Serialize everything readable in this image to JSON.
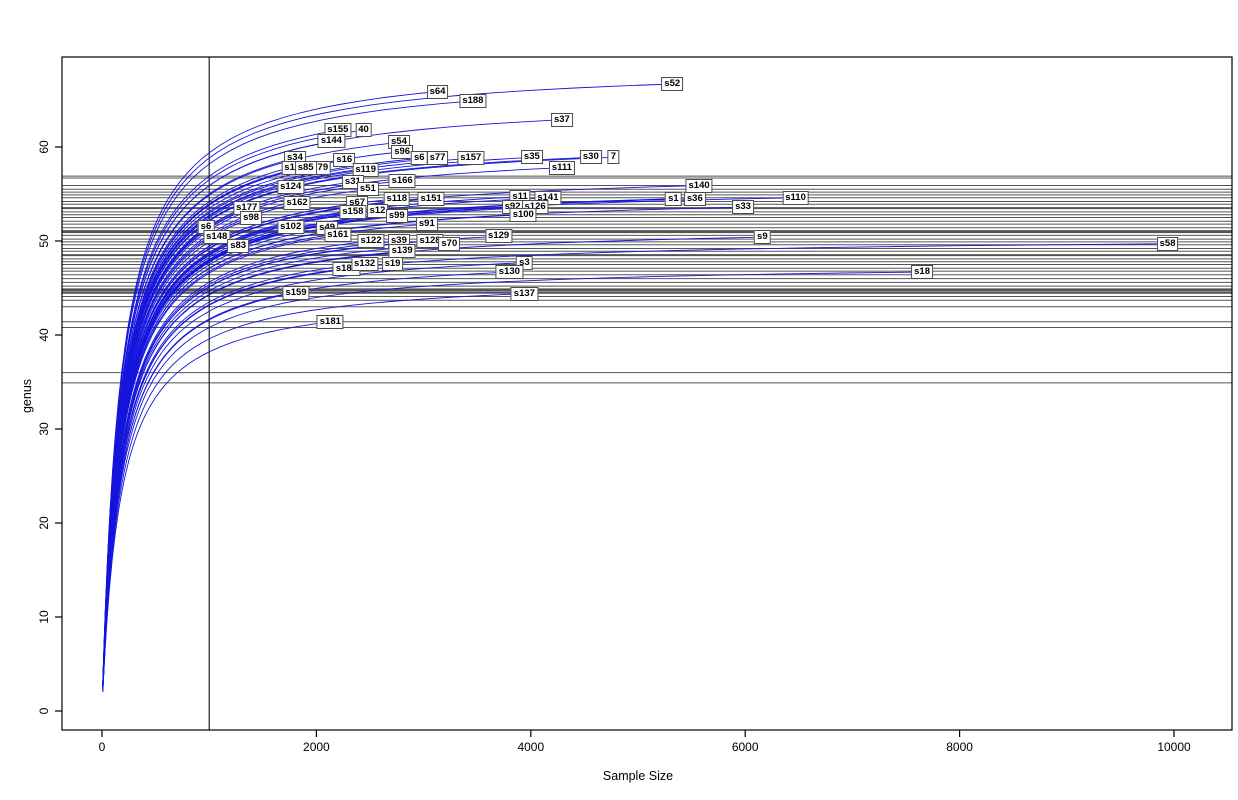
{
  "chart_data": {
    "type": "line",
    "title": "",
    "xlabel": "Sample Size",
    "ylabel": "genus",
    "xlim": [
      0,
      10300
    ],
    "ylim": [
      0,
      69
    ],
    "x_ticks": [
      0,
      2000,
      4000,
      6000,
      8000,
      10000
    ],
    "y_ticks": [
      0,
      10,
      20,
      30,
      40,
      50,
      60
    ],
    "legend": "none",
    "grid": "off",
    "curve_color": "#1515dd",
    "hline_color": "#555555",
    "box_color": "#000000",
    "vline_x": 1000,
    "hlines": [
      {
        "genus": 56.9,
        "weight": 1
      },
      {
        "genus": 56.7,
        "weight": 1
      },
      {
        "genus": 55.9,
        "weight": 1
      },
      {
        "genus": 55.5,
        "weight": 1
      },
      {
        "genus": 55.2,
        "weight": 1
      },
      {
        "genus": 54.9,
        "weight": 1
      },
      {
        "genus": 54.6,
        "weight": 1
      },
      {
        "genus": 54.2,
        "weight": 1
      },
      {
        "genus": 53.9,
        "weight": 1
      },
      {
        "genus": 53.5,
        "weight": 2
      },
      {
        "genus": 53.1,
        "weight": 1
      },
      {
        "genus": 52.8,
        "weight": 1
      },
      {
        "genus": 52.5,
        "weight": 1
      },
      {
        "genus": 52.1,
        "weight": 1
      },
      {
        "genus": 51.8,
        "weight": 1
      },
      {
        "genus": 51.4,
        "weight": 1
      },
      {
        "genus": 51.0,
        "weight": 3
      },
      {
        "genus": 50.6,
        "weight": 1
      },
      {
        "genus": 50.2,
        "weight": 1
      },
      {
        "genus": 49.9,
        "weight": 1
      },
      {
        "genus": 49.6,
        "weight": 1
      },
      {
        "genus": 49.2,
        "weight": 1
      },
      {
        "genus": 48.9,
        "weight": 1
      },
      {
        "genus": 48.5,
        "weight": 2
      },
      {
        "genus": 48.1,
        "weight": 1
      },
      {
        "genus": 47.8,
        "weight": 1
      },
      {
        "genus": 47.5,
        "weight": 1
      },
      {
        "genus": 47.1,
        "weight": 1
      },
      {
        "genus": 46.8,
        "weight": 1
      },
      {
        "genus": 46.4,
        "weight": 1
      },
      {
        "genus": 46.0,
        "weight": 1
      },
      {
        "genus": 45.6,
        "weight": 1
      },
      {
        "genus": 45.2,
        "weight": 1
      },
      {
        "genus": 44.8,
        "weight": 3
      },
      {
        "genus": 44.5,
        "weight": 2
      },
      {
        "genus": 44.1,
        "weight": 1
      },
      {
        "genus": 43.7,
        "weight": 1
      },
      {
        "genus": 43.0,
        "weight": 1
      },
      {
        "genus": 41.4,
        "weight": 1
      },
      {
        "genus": 40.8,
        "weight": 1
      },
      {
        "genus": 36.0,
        "weight": 1
      },
      {
        "genus": 34.9,
        "weight": 1
      }
    ],
    "series": [
      {
        "label": "s52",
        "end_x": 5320,
        "end_y": 66.7
      },
      {
        "label": "s64",
        "end_x": 3130,
        "end_y": 65.9
      },
      {
        "label": "s188",
        "end_x": 3460,
        "end_y": 64.9
      },
      {
        "label": "s37",
        "end_x": 4290,
        "end_y": 62.9
      },
      {
        "label": "40",
        "end_x": 2440,
        "end_y": 61.8,
        "partial": true
      },
      {
        "label": "s155",
        "end_x": 2200,
        "end_y": 61.8
      },
      {
        "label": "s144",
        "end_x": 2140,
        "end_y": 60.6
      },
      {
        "label": "s54",
        "end_x": 2770,
        "end_y": 60.5
      },
      {
        "label": "s96",
        "end_x": 2800,
        "end_y": 59.5
      },
      {
        "label": "s34",
        "end_x": 1800,
        "end_y": 58.8
      },
      {
        "label": "s16",
        "end_x": 2260,
        "end_y": 58.6
      },
      {
        "label": "s6",
        "end_x": 2960,
        "end_y": 58.8,
        "partial": true
      },
      {
        "label": "s77",
        "end_x": 3130,
        "end_y": 58.8
      },
      {
        "label": "s157",
        "end_x": 3440,
        "end_y": 58.8
      },
      {
        "label": "s1",
        "end_x": 1750,
        "end_y": 57.8,
        "partial": true
      },
      {
        "label": "79",
        "end_x": 2060,
        "end_y": 57.8,
        "partial": true
      },
      {
        "label": "s85",
        "end_x": 1900,
        "end_y": 57.8
      },
      {
        "label": "s119",
        "end_x": 2460,
        "end_y": 57.6
      },
      {
        "label": "s35",
        "end_x": 4010,
        "end_y": 58.9
      },
      {
        "label": "7",
        "end_x": 4770,
        "end_y": 58.9,
        "partial": true
      },
      {
        "label": "s30",
        "end_x": 4560,
        "end_y": 58.9
      },
      {
        "label": "s111",
        "end_x": 4290,
        "end_y": 57.8
      },
      {
        "label": "s31",
        "end_x": 2340,
        "end_y": 56.3
      },
      {
        "label": "s166",
        "end_x": 2800,
        "end_y": 56.4
      },
      {
        "label": "s124",
        "end_x": 1760,
        "end_y": 55.7
      },
      {
        "label": "s51",
        "end_x": 2480,
        "end_y": 55.5
      },
      {
        "label": "s140",
        "end_x": 5570,
        "end_y": 55.9
      },
      {
        "label": "s162",
        "end_x": 1820,
        "end_y": 54.0
      },
      {
        "label": "s67",
        "end_x": 2380,
        "end_y": 54.0
      },
      {
        "label": "s118",
        "end_x": 2750,
        "end_y": 54.5
      },
      {
        "label": "s151",
        "end_x": 3070,
        "end_y": 54.5
      },
      {
        "label": "s1",
        "end_x": 5330,
        "end_y": 54.5,
        "partial": true
      },
      {
        "label": "s36",
        "end_x": 5530,
        "end_y": 54.5
      },
      {
        "label": "s11",
        "end_x": 3900,
        "end_y": 54.7
      },
      {
        "label": "s141",
        "end_x": 4160,
        "end_y": 54.6
      },
      {
        "label": "s126",
        "end_x": 4040,
        "end_y": 53.6,
        "partial": true
      },
      {
        "label": "s92",
        "end_x": 3830,
        "end_y": 53.6
      },
      {
        "label": "s100",
        "end_x": 3930,
        "end_y": 52.8
      },
      {
        "label": "s33",
        "end_x": 5980,
        "end_y": 53.6
      },
      {
        "label": "s110",
        "end_x": 6470,
        "end_y": 54.6
      },
      {
        "label": "s177",
        "end_x": 1350,
        "end_y": 53.5
      },
      {
        "label": "s98",
        "end_x": 1390,
        "end_y": 52.4
      },
      {
        "label": "s158",
        "end_x": 2340,
        "end_y": 53.1,
        "partial": true
      },
      {
        "label": "s12",
        "end_x": 2570,
        "end_y": 53.2
      },
      {
        "label": "s102",
        "end_x": 1760,
        "end_y": 51.5
      },
      {
        "label": "s49",
        "end_x": 2100,
        "end_y": 51.4,
        "partial": true
      },
      {
        "label": "s6",
        "end_x": 970,
        "end_y": 51.5
      },
      {
        "label": "s148",
        "end_x": 1070,
        "end_y": 50.4
      },
      {
        "label": "s83",
        "end_x": 1270,
        "end_y": 49.5
      },
      {
        "label": "s161",
        "end_x": 2200,
        "end_y": 50.6
      },
      {
        "label": "s99",
        "end_x": 2750,
        "end_y": 52.7
      },
      {
        "label": "s91",
        "end_x": 3030,
        "end_y": 51.8
      },
      {
        "label": "s122",
        "end_x": 2510,
        "end_y": 50.0
      },
      {
        "label": "s39",
        "end_x": 2770,
        "end_y": 50.0
      },
      {
        "label": "s128",
        "end_x": 3060,
        "end_y": 50.0
      },
      {
        "label": "s139",
        "end_x": 2800,
        "end_y": 48.9
      },
      {
        "label": "s70",
        "end_x": 3240,
        "end_y": 49.7
      },
      {
        "label": "s129",
        "end_x": 3700,
        "end_y": 50.5
      },
      {
        "label": "s9",
        "end_x": 6160,
        "end_y": 50.4
      },
      {
        "label": "s58",
        "end_x": 9940,
        "end_y": 49.7
      },
      {
        "label": "s180",
        "end_x": 2280,
        "end_y": 47.0
      },
      {
        "label": "s132",
        "end_x": 2450,
        "end_y": 47.6
      },
      {
        "label": "s19",
        "end_x": 2710,
        "end_y": 47.6
      },
      {
        "label": "s3",
        "end_x": 3940,
        "end_y": 47.7
      },
      {
        "label": "s130",
        "end_x": 3800,
        "end_y": 46.7
      },
      {
        "label": "s18",
        "end_x": 7650,
        "end_y": 46.7
      },
      {
        "label": "s159",
        "end_x": 1810,
        "end_y": 44.5
      },
      {
        "label": "s137",
        "end_x": 3940,
        "end_y": 44.4
      },
      {
        "label": "s181",
        "end_x": 2130,
        "end_y": 41.4
      }
    ]
  }
}
